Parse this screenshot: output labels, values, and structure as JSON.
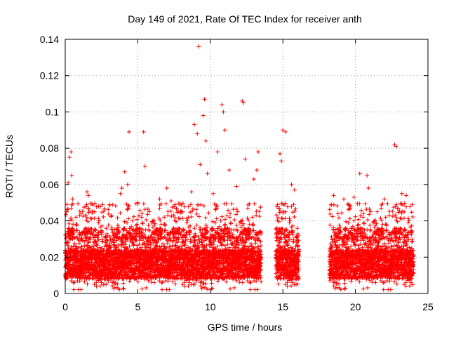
{
  "chart_data": {
    "type": "scatter",
    "title": "Day 149 of 2021, Rate Of TEC Index for receiver anth",
    "xlabel": "GPS time / hours",
    "ylabel": "ROTI / TECUs",
    "xlim": [
      0,
      25
    ],
    "ylim": [
      0,
      0.14
    ],
    "xticks": [
      0,
      5,
      10,
      15,
      20,
      25
    ],
    "yticks": [
      0,
      0.02,
      0.04,
      0.06,
      0.08,
      0.1,
      0.12,
      0.14
    ],
    "xtick_labels": [
      "0",
      "5",
      "10",
      "15",
      "20",
      "25"
    ],
    "ytick_labels": [
      "0",
      "0.02",
      "0.04",
      "0.06",
      "0.08",
      "0.1",
      "0.12",
      "0.14"
    ],
    "grid": true,
    "marker": "plus",
    "color": "#ff0000",
    "data_gaps_hours": [
      [
        13.5,
        14.5
      ],
      [
        16.1,
        18.2
      ]
    ],
    "series": [
      {
        "x": [
          0.1,
          0.2,
          0.3,
          0.4,
          0.45,
          0.5,
          1.1,
          1.5,
          1.6,
          2.3,
          3.2,
          3.8,
          3.9,
          4.1,
          4.3,
          4.4,
          5.0,
          5.4,
          5.5,
          6.5,
          7.0,
          7.3,
          8.0,
          8.5,
          8.7,
          8.9,
          9.1,
          9.2,
          9.3,
          9.5,
          9.6,
          9.7,
          9.8,
          10.2,
          10.5,
          10.8,
          10.9,
          11.0,
          11.3,
          11.8,
          12.2,
          12.3,
          12.4,
          13.0,
          13.2,
          13.3,
          14.8,
          14.9,
          15.0,
          15.2,
          15.6,
          15.8,
          18.5,
          18.8,
          19.2,
          19.5,
          19.9,
          20.3,
          20.8,
          20.9,
          21.5,
          22.0,
          22.7,
          22.8,
          23.2,
          23.5,
          23.9
        ],
        "y": [
          0.045,
          0.061,
          0.075,
          0.078,
          0.065,
          0.052,
          0.044,
          0.056,
          0.054,
          0.048,
          0.043,
          0.055,
          0.058,
          0.067,
          0.06,
          0.089,
          0.05,
          0.089,
          0.07,
          0.052,
          0.058,
          0.051,
          0.045,
          0.042,
          0.056,
          0.093,
          0.088,
          0.136,
          0.071,
          0.098,
          0.107,
          0.084,
          0.066,
          0.055,
          0.078,
          0.104,
          0.1,
          0.09,
          0.068,
          0.059,
          0.106,
          0.105,
          0.074,
          0.063,
          0.068,
          0.078,
          0.077,
          0.073,
          0.09,
          0.089,
          0.06,
          0.057,
          0.054,
          0.044,
          0.052,
          0.049,
          0.053,
          0.066,
          0.065,
          0.058,
          0.045,
          0.052,
          0.082,
          0.081,
          0.055,
          0.054,
          0.034
        ]
      }
    ]
  }
}
